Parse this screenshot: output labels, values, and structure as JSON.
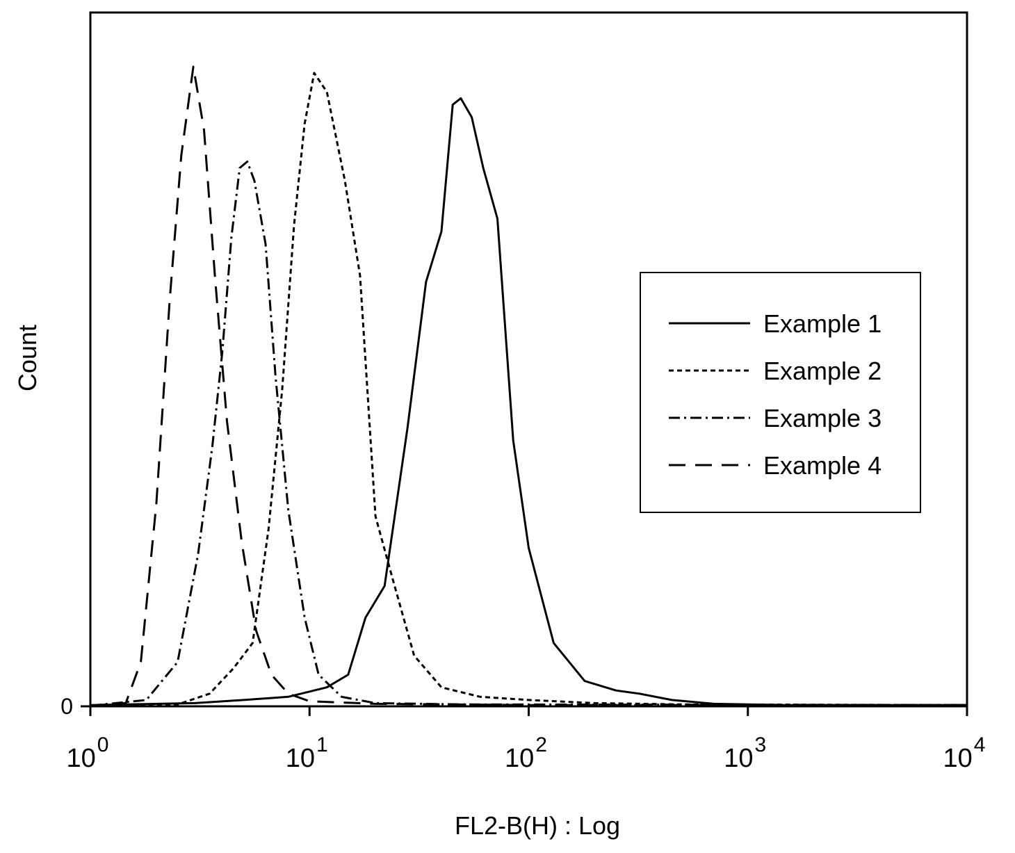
{
  "chart_data": {
    "type": "line",
    "title": "",
    "xlabel": "FL2-B(H) : Log",
    "ylabel": "Count",
    "x_scale": "log",
    "xlim": [
      1,
      10000
    ],
    "ylim": [
      0,
      100
    ],
    "grid": false,
    "legend_position": "right",
    "x_ticks": [
      {
        "base": "10",
        "exp": "0",
        "value": 1
      },
      {
        "base": "10",
        "exp": "1",
        "value": 10
      },
      {
        "base": "10",
        "exp": "2",
        "value": 100
      },
      {
        "base": "10",
        "exp": "3",
        "value": 1000
      },
      {
        "base": "10",
        "exp": "4",
        "value": 10000
      }
    ],
    "y_ticks": [
      {
        "label": "0",
        "value": 0
      }
    ],
    "series": [
      {
        "name": "Example 1",
        "dash": "solid",
        "points": [
          [
            1.0,
            0.2
          ],
          [
            3.0,
            0.5
          ],
          [
            5.0,
            1.0
          ],
          [
            8.0,
            1.5
          ],
          [
            12.0,
            3.0
          ],
          [
            15.0,
            5.0
          ],
          [
            18.0,
            14.0
          ],
          [
            22.0,
            19.0
          ],
          [
            28.0,
            44.0
          ],
          [
            34.0,
            67.0
          ],
          [
            40.0,
            75.0
          ],
          [
            45.0,
            95.0
          ],
          [
            49.0,
            96.0
          ],
          [
            55.0,
            93.0
          ],
          [
            62.0,
            85.0
          ],
          [
            72.0,
            77.0
          ],
          [
            85.0,
            42.0
          ],
          [
            100.0,
            25.0
          ],
          [
            130.0,
            10.0
          ],
          [
            180.0,
            4.0
          ],
          [
            250.0,
            2.5
          ],
          [
            320.0,
            2.0
          ],
          [
            450.0,
            1.0
          ],
          [
            700.0,
            0.4
          ],
          [
            1500.0,
            0.2
          ],
          [
            10000.0,
            0.2
          ]
        ]
      },
      {
        "name": "Example 2",
        "dash": "short-dash",
        "points": [
          [
            1.0,
            0.1
          ],
          [
            2.5,
            0.3
          ],
          [
            3.5,
            2.0
          ],
          [
            4.5,
            6.0
          ],
          [
            5.5,
            10.0
          ],
          [
            6.5,
            28.0
          ],
          [
            7.5,
            50.0
          ],
          [
            8.5,
            76.0
          ],
          [
            9.5,
            92.0
          ],
          [
            10.5,
            100.0
          ],
          [
            12.0,
            97.0
          ],
          [
            14.5,
            83.0
          ],
          [
            17.0,
            68.0
          ],
          [
            20.0,
            30.0
          ],
          [
            24.0,
            20.0
          ],
          [
            30.0,
            8.0
          ],
          [
            40.0,
            3.0
          ],
          [
            60.0,
            1.5
          ],
          [
            100.0,
            1.0
          ],
          [
            200.0,
            0.5
          ],
          [
            500.0,
            0.3
          ],
          [
            10000.0,
            0.2
          ]
        ]
      },
      {
        "name": "Example 3",
        "dash": "dash-dot",
        "points": [
          [
            1.0,
            0.1
          ],
          [
            1.8,
            1.0
          ],
          [
            2.5,
            7.0
          ],
          [
            3.1,
            24.0
          ],
          [
            3.6,
            41.0
          ],
          [
            4.0,
            56.0
          ],
          [
            4.4,
            74.0
          ],
          [
            4.8,
            85.0
          ],
          [
            5.2,
            86.0
          ],
          [
            5.6,
            83.0
          ],
          [
            6.3,
            73.0
          ],
          [
            7.0,
            52.0
          ],
          [
            8.0,
            31.0
          ],
          [
            9.5,
            14.0
          ],
          [
            11.0,
            5.0
          ],
          [
            14.0,
            1.5
          ],
          [
            20.0,
            0.5
          ],
          [
            50.0,
            0.3
          ],
          [
            10000.0,
            0.2
          ]
        ]
      },
      {
        "name": "Example 4",
        "dash": "long-dash",
        "points": [
          [
            1.0,
            0.1
          ],
          [
            1.45,
            0.5
          ],
          [
            1.7,
            7.0
          ],
          [
            2.0,
            32.0
          ],
          [
            2.3,
            64.0
          ],
          [
            2.6,
            87.0
          ],
          [
            2.95,
            101.0
          ],
          [
            3.3,
            91.0
          ],
          [
            3.7,
            68.0
          ],
          [
            4.2,
            45.0
          ],
          [
            4.9,
            26.0
          ],
          [
            5.7,
            12.0
          ],
          [
            6.7,
            5.0
          ],
          [
            8.0,
            2.0
          ],
          [
            10.0,
            0.8
          ],
          [
            20.0,
            0.4
          ],
          [
            100.0,
            0.2
          ],
          [
            10000.0,
            0.2
          ]
        ]
      }
    ]
  }
}
